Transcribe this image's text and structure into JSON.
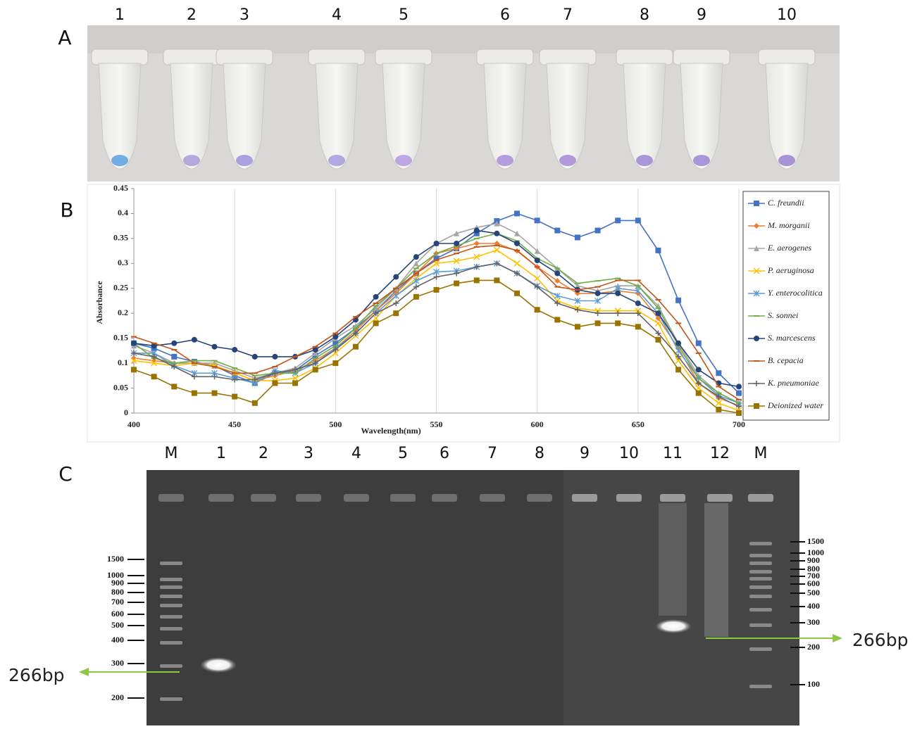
{
  "panel_a": {
    "letter": "A",
    "tube_labels": [
      "1",
      "2",
      "3",
      "4",
      "5",
      "6",
      "7",
      "8",
      "9",
      "10"
    ]
  },
  "chart_data": {
    "type": "line",
    "panel_letter": "B",
    "x_label": "Wavelength(nm)",
    "y_label": "Absorbance",
    "x": [
      400,
      410,
      420,
      430,
      440,
      450,
      460,
      470,
      480,
      490,
      500,
      510,
      520,
      530,
      540,
      550,
      560,
      570,
      580,
      590,
      600,
      610,
      620,
      630,
      640,
      650,
      660,
      670,
      680,
      690,
      700
    ],
    "xlim": [
      400,
      700
    ],
    "xticks": [
      400,
      450,
      500,
      550,
      600,
      650,
      700
    ],
    "ylim": [
      0,
      0.45
    ],
    "yticks": [
      0,
      0.05,
      0.1,
      0.15,
      0.2,
      0.25,
      0.3,
      0.35,
      0.4,
      0.45
    ],
    "grid": "x",
    "legend": "right",
    "series": [
      {
        "name": "C. freundii",
        "color": "#4472c4",
        "marker": "square",
        "values": [
          0.14,
          0.13,
          0.113,
          0.103,
          0.095,
          0.075,
          0.06,
          0.08,
          0.085,
          0.115,
          0.14,
          0.17,
          0.205,
          0.245,
          0.28,
          0.31,
          0.33,
          0.36,
          0.385,
          0.4,
          0.386,
          0.366,
          0.352,
          0.366,
          0.386,
          0.386,
          0.326,
          0.226,
          0.14,
          0.08,
          0.04
        ]
      },
      {
        "name": "M. morganii",
        "color": "#ed7d31",
        "marker": "diamond",
        "values": [
          0.11,
          0.105,
          0.1,
          0.1,
          0.095,
          0.08,
          0.065,
          0.075,
          0.085,
          0.105,
          0.13,
          0.165,
          0.205,
          0.24,
          0.28,
          0.32,
          0.33,
          0.34,
          0.34,
          0.325,
          0.293,
          0.265,
          0.24,
          0.24,
          0.245,
          0.24,
          0.19,
          0.13,
          0.06,
          0.03,
          0.015
        ]
      },
      {
        "name": "E. aerogenes",
        "color": "#a5a5a5",
        "marker": "triangle",
        "values": [
          0.135,
          0.12,
          0.1,
          0.1,
          0.1,
          0.085,
          0.07,
          0.08,
          0.09,
          0.12,
          0.15,
          0.175,
          0.21,
          0.25,
          0.3,
          0.34,
          0.36,
          0.372,
          0.38,
          0.36,
          0.325,
          0.29,
          0.255,
          0.245,
          0.255,
          0.255,
          0.215,
          0.14,
          0.075,
          0.04,
          0.02
        ]
      },
      {
        "name": "P. aeruginosa",
        "color": "#ffc000",
        "marker": "x",
        "values": [
          0.105,
          0.1,
          0.095,
          0.1,
          0.095,
          0.08,
          0.065,
          0.065,
          0.07,
          0.09,
          0.12,
          0.155,
          0.19,
          0.235,
          0.27,
          0.3,
          0.305,
          0.313,
          0.327,
          0.3,
          0.27,
          0.225,
          0.21,
          0.205,
          0.205,
          0.205,
          0.18,
          0.105,
          0.05,
          0.02,
          0.005
        ]
      },
      {
        "name": "Y. enterocolitica",
        "color": "#5b9bd5",
        "marker": "asterisk",
        "values": [
          0.12,
          0.12,
          0.095,
          0.08,
          0.08,
          0.07,
          0.06,
          0.085,
          0.08,
          0.1,
          0.13,
          0.16,
          0.2,
          0.235,
          0.265,
          0.283,
          0.285,
          0.293,
          0.3,
          0.28,
          0.255,
          0.235,
          0.225,
          0.225,
          0.25,
          0.245,
          0.2,
          0.125,
          0.07,
          0.035,
          0.02
        ]
      },
      {
        "name": "S. sonnei",
        "color": "#70ad47",
        "marker": "dash",
        "values": [
          0.14,
          0.11,
          0.1,
          0.105,
          0.105,
          0.09,
          0.075,
          0.08,
          0.08,
          0.11,
          0.135,
          0.17,
          0.215,
          0.25,
          0.29,
          0.32,
          0.335,
          0.35,
          0.36,
          0.345,
          0.31,
          0.29,
          0.26,
          0.265,
          0.27,
          0.255,
          0.21,
          0.135,
          0.07,
          0.04,
          0.02
        ]
      },
      {
        "name": "S. marcescens",
        "color": "#264478",
        "marker": "circle",
        "values": [
          0.14,
          0.135,
          0.14,
          0.147,
          0.133,
          0.127,
          0.113,
          0.113,
          0.113,
          0.127,
          0.153,
          0.187,
          0.233,
          0.273,
          0.313,
          0.34,
          0.34,
          0.366,
          0.36,
          0.34,
          0.306,
          0.28,
          0.247,
          0.24,
          0.24,
          0.22,
          0.2,
          0.14,
          0.087,
          0.06,
          0.053
        ]
      },
      {
        "name": "B. cepacia",
        "color": "#c0561b",
        "marker": "dash",
        "values": [
          0.153,
          0.14,
          0.127,
          0.1,
          0.093,
          0.08,
          0.08,
          0.093,
          0.113,
          0.133,
          0.16,
          0.193,
          0.22,
          0.25,
          0.28,
          0.307,
          0.32,
          0.333,
          0.336,
          0.326,
          0.293,
          0.253,
          0.247,
          0.253,
          0.266,
          0.266,
          0.227,
          0.18,
          0.12,
          0.053,
          0.027
        ]
      },
      {
        "name": "K. pneumoniae",
        "color": "#636363",
        "marker": "plus",
        "values": [
          0.12,
          0.113,
          0.093,
          0.073,
          0.073,
          0.067,
          0.067,
          0.08,
          0.087,
          0.1,
          0.127,
          0.16,
          0.2,
          0.22,
          0.253,
          0.273,
          0.28,
          0.293,
          0.3,
          0.28,
          0.253,
          0.22,
          0.207,
          0.2,
          0.2,
          0.2,
          0.16,
          0.113,
          0.06,
          0.033,
          0.013
        ]
      },
      {
        "name": "Deionized water",
        "color": "#997300",
        "marker": "square",
        "values": [
          0.087,
          0.073,
          0.053,
          0.04,
          0.04,
          0.033,
          0.02,
          0.06,
          0.06,
          0.087,
          0.1,
          0.133,
          0.18,
          0.2,
          0.233,
          0.247,
          0.26,
          0.266,
          0.266,
          0.24,
          0.207,
          0.187,
          0.173,
          0.18,
          0.18,
          0.173,
          0.147,
          0.087,
          0.04,
          0.007,
          0
        ]
      }
    ]
  },
  "panel_c": {
    "letter": "C",
    "lane_labels": [
      "M",
      "1",
      "2",
      "3",
      "4",
      "5",
      "6",
      "7",
      "8",
      "9",
      "10",
      "11",
      "12",
      "M"
    ],
    "left_ladder": [
      1500,
      1000,
      900,
      800,
      700,
      600,
      500,
      400,
      300,
      200
    ],
    "right_ladder": [
      1500,
      1000,
      900,
      800,
      700,
      600,
      500,
      400,
      300,
      200,
      100
    ],
    "left_annotation": "266bp",
    "right_annotation": "266bp"
  }
}
